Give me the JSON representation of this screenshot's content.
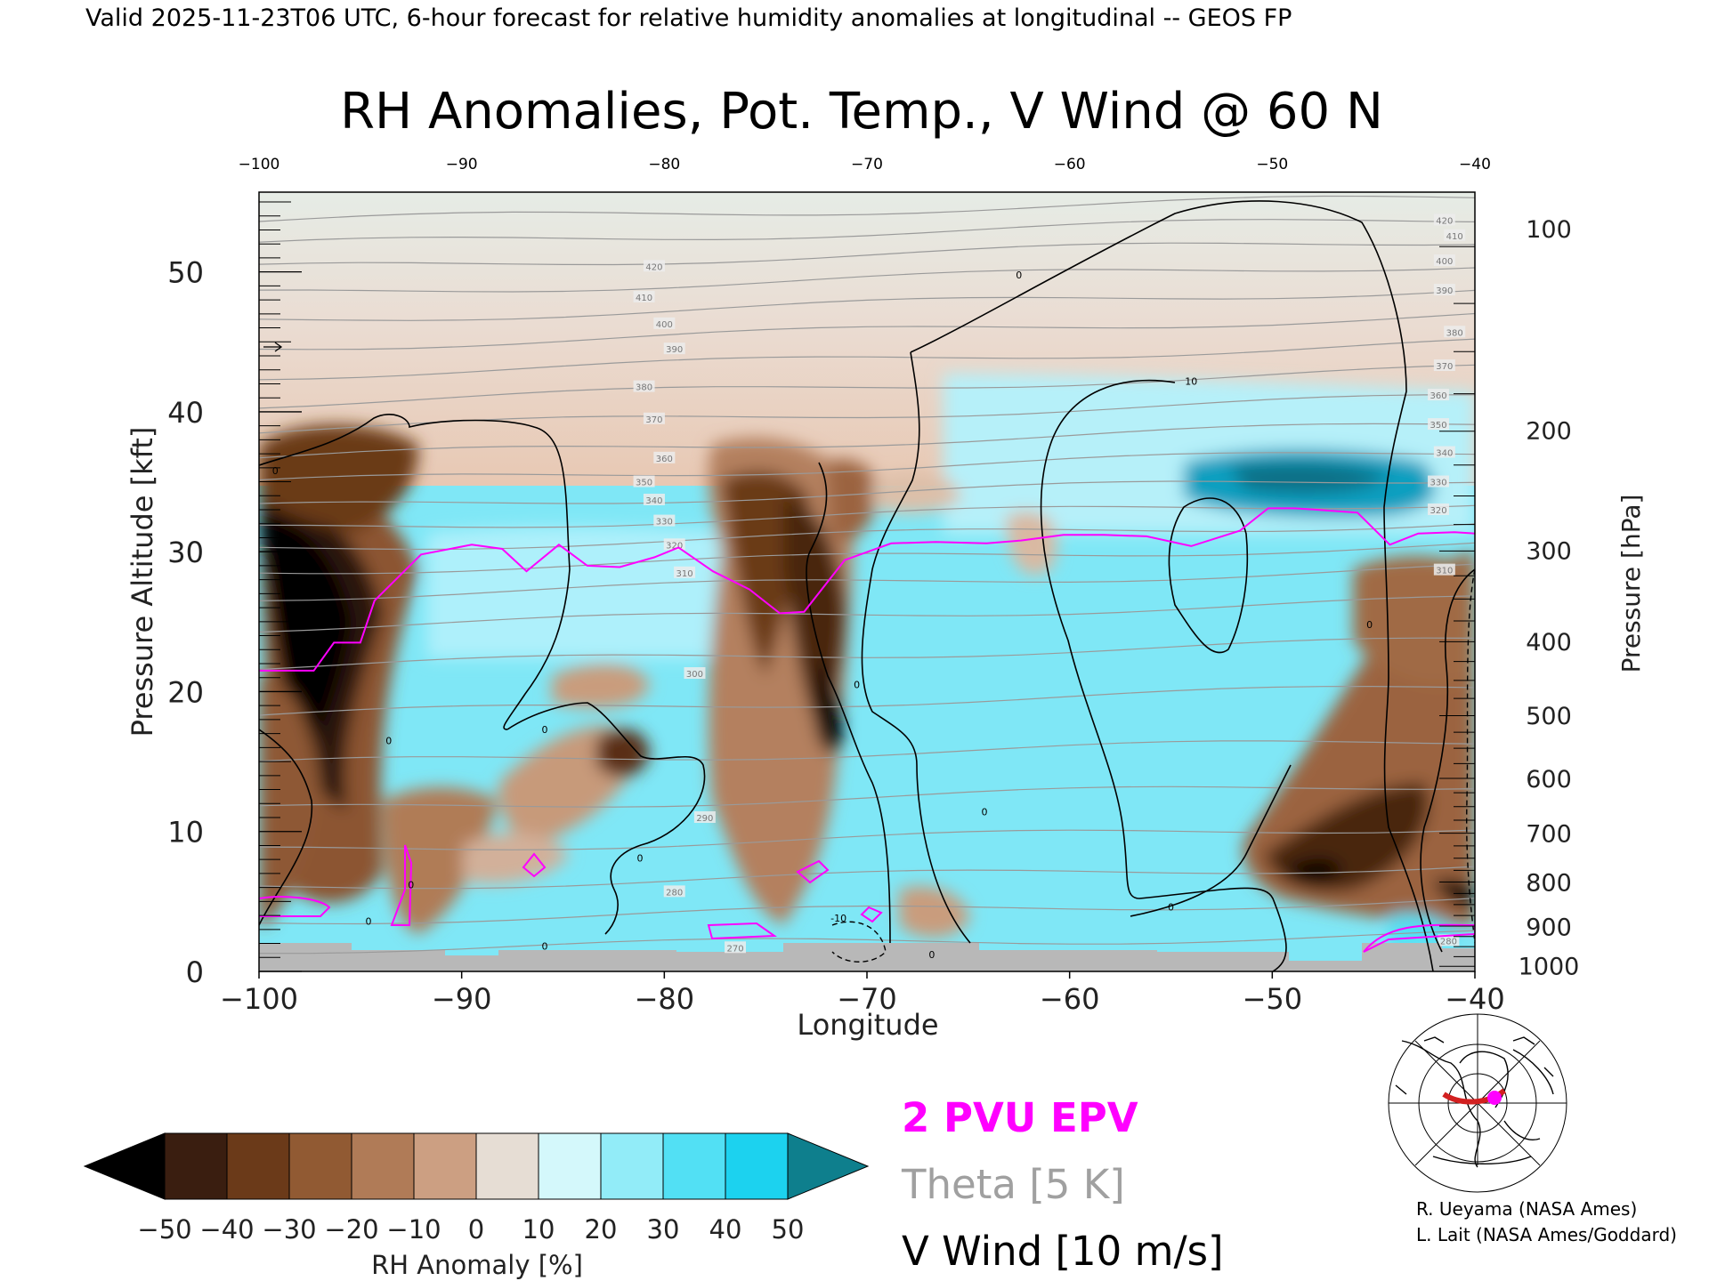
{
  "header": {
    "valid_line": "Valid 2025-11-23T06 UTC, 6-hour forecast for relative humidity anomalies at longitudinal -- GEOS FP"
  },
  "chart_data": {
    "type": "heatmap",
    "title": "RH Anomalies, Pot. Temp., V Wind @ 60 N",
    "xlabel": "Longitude",
    "ylabel": "Pressure Altitude [kft]",
    "y2label": "Pressure [hPa]",
    "xlim": [
      -100,
      -40
    ],
    "ylim": [
      0,
      55.7
    ],
    "x_ticks": [
      -100,
      -90,
      -80,
      -70,
      -60,
      -50,
      -40
    ],
    "x_tick_labels": [
      "−100",
      "−90",
      "−80",
      "−70",
      "−60",
      "−50",
      "−40"
    ],
    "top_ticks": [
      -100,
      -90,
      -80,
      -70,
      -60,
      -50,
      -40
    ],
    "top_tick_labels": [
      "−100",
      "−90",
      "−80",
      "−70",
      "−60",
      "−50",
      "−40"
    ],
    "y_ticks": [
      0,
      10,
      20,
      30,
      40,
      50
    ],
    "pressure_ticks": [
      {
        "label": "100",
        "kft": 53.1
      },
      {
        "label": "200",
        "kft": 38.7
      },
      {
        "label": "300",
        "kft": 30.1
      },
      {
        "label": "400",
        "kft": 23.6
      },
      {
        "label": "500",
        "kft": 18.3
      },
      {
        "label": "600",
        "kft": 13.8
      },
      {
        "label": "700",
        "kft": 9.9
      },
      {
        "label": "800",
        "kft": 6.4
      },
      {
        "label": "900",
        "kft": 3.2
      },
      {
        "label": "1000",
        "kft": 0.4
      }
    ],
    "theta_contours": {
      "interval_K": 5,
      "labeled_levels": [
        {
          "label": "420",
          "x": -80.5,
          "y": 50.4
        },
        {
          "label": "410",
          "x": -81.0,
          "y": 48.2
        },
        {
          "label": "400",
          "x": -80.0,
          "y": 46.3
        },
        {
          "label": "390",
          "x": -79.5,
          "y": 44.5
        },
        {
          "label": "380",
          "x": -81.0,
          "y": 41.8
        },
        {
          "label": "370",
          "x": -80.5,
          "y": 39.5
        },
        {
          "label": "360",
          "x": -80.0,
          "y": 36.7
        },
        {
          "label": "350",
          "x": -81.0,
          "y": 35.0
        },
        {
          "label": "340",
          "x": -80.5,
          "y": 33.7
        },
        {
          "label": "330",
          "x": -80.0,
          "y": 32.2
        },
        {
          "label": "320",
          "x": -79.5,
          "y": 30.5
        },
        {
          "label": "310",
          "x": -79.0,
          "y": 28.5
        },
        {
          "label": "300",
          "x": -78.5,
          "y": 21.3
        },
        {
          "label": "290",
          "x": -78.0,
          "y": 11.0
        },
        {
          "label": "280",
          "x": -79.5,
          "y": 5.7
        },
        {
          "label": "270",
          "x": -76.5,
          "y": 1.7
        },
        {
          "label": "420",
          "x": -41.5,
          "y": 53.7
        },
        {
          "label": "410",
          "x": -41.0,
          "y": 52.6
        },
        {
          "label": "400",
          "x": -41.5,
          "y": 50.8
        },
        {
          "label": "390",
          "x": -41.5,
          "y": 48.7
        },
        {
          "label": "380",
          "x": -41.0,
          "y": 45.7
        },
        {
          "label": "370",
          "x": -41.5,
          "y": 43.3
        },
        {
          "label": "360",
          "x": -41.8,
          "y": 41.2
        },
        {
          "label": "350",
          "x": -41.8,
          "y": 39.1
        },
        {
          "label": "340",
          "x": -41.5,
          "y": 37.1
        },
        {
          "label": "330",
          "x": -41.8,
          "y": 35.0
        },
        {
          "label": "320",
          "x": -41.8,
          "y": 33.0
        },
        {
          "label": "310",
          "x": -41.5,
          "y": 28.7
        },
        {
          "label": "280",
          "x": -41.3,
          "y": 2.2
        }
      ]
    },
    "epv_2pvu_line": [
      [
        -100,
        21.5
      ],
      [
        -97.3,
        21.5
      ],
      [
        -96.3,
        23.5
      ],
      [
        -95,
        23.5
      ],
      [
        -94.3,
        26.5
      ],
      [
        -92,
        29.8
      ],
      [
        -89.5,
        30.5
      ],
      [
        -88,
        30.2
      ],
      [
        -86.8,
        28.6
      ],
      [
        -85.2,
        30.5
      ],
      [
        -83.8,
        29
      ],
      [
        -82.2,
        28.9
      ],
      [
        -80.5,
        29.6
      ],
      [
        -79.3,
        30.3
      ],
      [
        -77.6,
        28.6
      ],
      [
        -75.8,
        27.3
      ],
      [
        -74.3,
        25.6
      ],
      [
        -73.1,
        25.7
      ],
      [
        -71.1,
        29.4
      ],
      [
        -68.8,
        30.6
      ],
      [
        -66.6,
        30.7
      ],
      [
        -64.1,
        30.6
      ],
      [
        -62.4,
        30.8
      ],
      [
        -60.3,
        31.2
      ],
      [
        -58.3,
        31.2
      ],
      [
        -56.2,
        31.1
      ],
      [
        -54.0,
        30.4
      ],
      [
        -51.6,
        31.5
      ],
      [
        -50.2,
        33.1
      ],
      [
        -48.9,
        33.1
      ],
      [
        -47.8,
        33.0
      ],
      [
        -45.8,
        32.8
      ],
      [
        -44.2,
        30.5
      ],
      [
        -42.8,
        31.3
      ],
      [
        -41.0,
        31.4
      ],
      [
        -40,
        31.3
      ]
    ],
    "v_wind_contours": {
      "interval_ms": 10,
      "labels": [
        {
          "label": "0",
          "x": -62.5,
          "y": 49.8
        },
        {
          "label": "0",
          "x": -99.2,
          "y": 35.8
        },
        {
          "label": "0",
          "x": -93.6,
          "y": 16.5
        },
        {
          "label": "0",
          "x": -70.5,
          "y": 20.5
        },
        {
          "label": "0",
          "x": -45.2,
          "y": 24.8
        },
        {
          "label": "0",
          "x": -85.9,
          "y": 17.3
        },
        {
          "label": "0",
          "x": -55.0,
          "y": 4.6
        },
        {
          "label": "0",
          "x": -64.2,
          "y": 11.4
        },
        {
          "label": "0",
          "x": -81.2,
          "y": 8.1
        },
        {
          "label": "10",
          "x": -54.0,
          "y": 42.2
        },
        {
          "label": "-10",
          "x": -71.4,
          "y": 3.8
        },
        {
          "label": "0",
          "x": -66.8,
          "y": 1.2
        },
        {
          "label": "0",
          "x": -92.5,
          "y": 6.2
        },
        {
          "label": "0",
          "x": -94.6,
          "y": 3.6
        },
        {
          "label": "0",
          "x": -85.9,
          "y": 1.8
        }
      ],
      "arrow_marker": {
        "x": -99.5,
        "y": 44.5
      }
    },
    "rh_colorbar": {
      "label": "RH Anomaly [%]",
      "ticks": [
        "−50",
        "−40",
        "−30",
        "−20",
        "−10",
        "0",
        "10",
        "20",
        "30",
        "40",
        "50"
      ],
      "colors": [
        "#000000",
        "#3a1e10",
        "#6b3a19",
        "#915a33",
        "#b07b57",
        "#cc9f82",
        "#e6ddd4",
        "#d4f8fb",
        "#92ecf8",
        "#52e0f4",
        "#1cd2ef",
        "#0a9fc0",
        "#0e7f8d"
      ]
    },
    "legend": {
      "epv": "2 PVU EPV",
      "theta": "Theta [5 K]",
      "vwind": "V Wind [10 m/s]",
      "epv_color": "#ff00ff",
      "theta_color": "#a0a0a0",
      "vwind_color": "#000000"
    }
  },
  "credits": {
    "line1": "R. Ueyama (NASA Ames)",
    "line2": "L. Lait (NASA Ames/Goddard)"
  },
  "colors": {
    "epv": "#ff00ff",
    "theta": "#9a9a9a",
    "ground": "#b8b8b8",
    "background": "#ffffff"
  }
}
